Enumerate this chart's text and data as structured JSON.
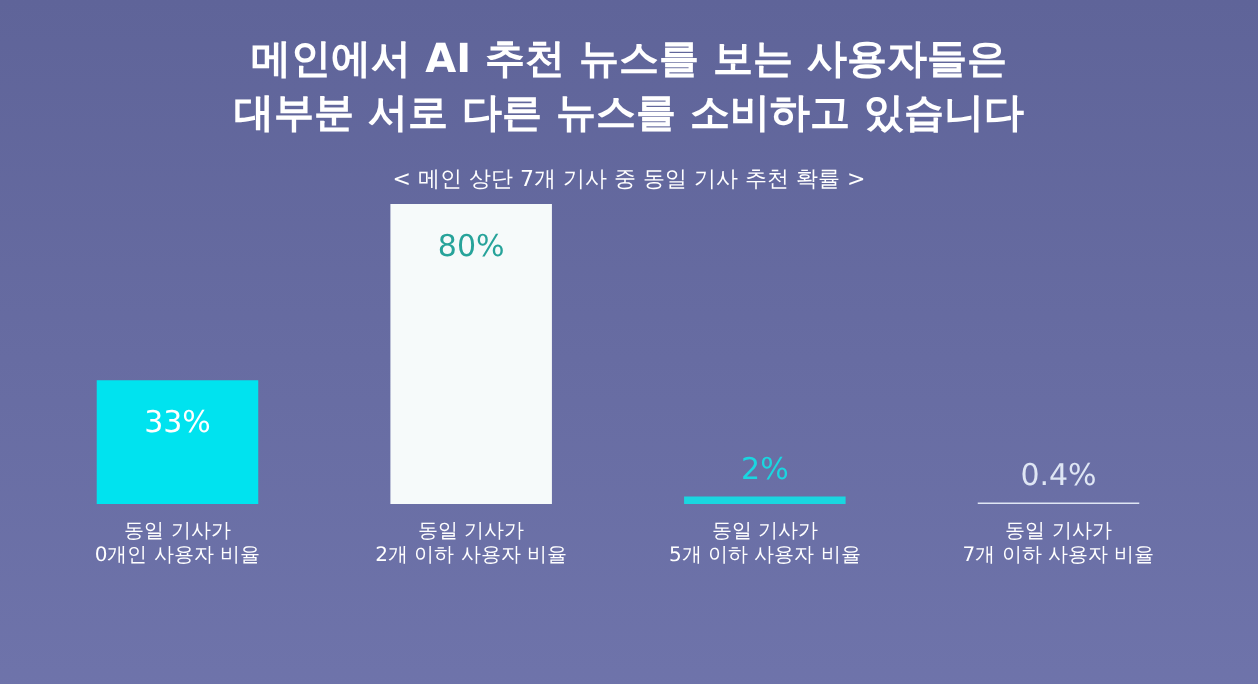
{
  "chart_data": {
    "type": "bar",
    "title": "메인에서 AI 추천 뉴스를 보는 사용자들은 대부분 서로 다른 뉴스를 소비하고 있습니다",
    "subtitle": "< 메인 상단 7개 기사 중 동일 기사 추천 확률 >",
    "categories": [
      "동일 기사가 0개인 사용자 비율",
      "동일 기사가 2개 이하 사용자 비율",
      "동일 기사가 5개 이하 사용자 비율",
      "동일 기사가 7개 이하 사용자 비율"
    ],
    "values": [
      33,
      80,
      2,
      0.4
    ],
    "value_labels": [
      "33%",
      "80%",
      "2%",
      "0.4%"
    ],
    "colors": [
      "#00e3ef",
      "#f6fafa",
      "#1ad6e0",
      "#dfe6f4"
    ]
  }
}
